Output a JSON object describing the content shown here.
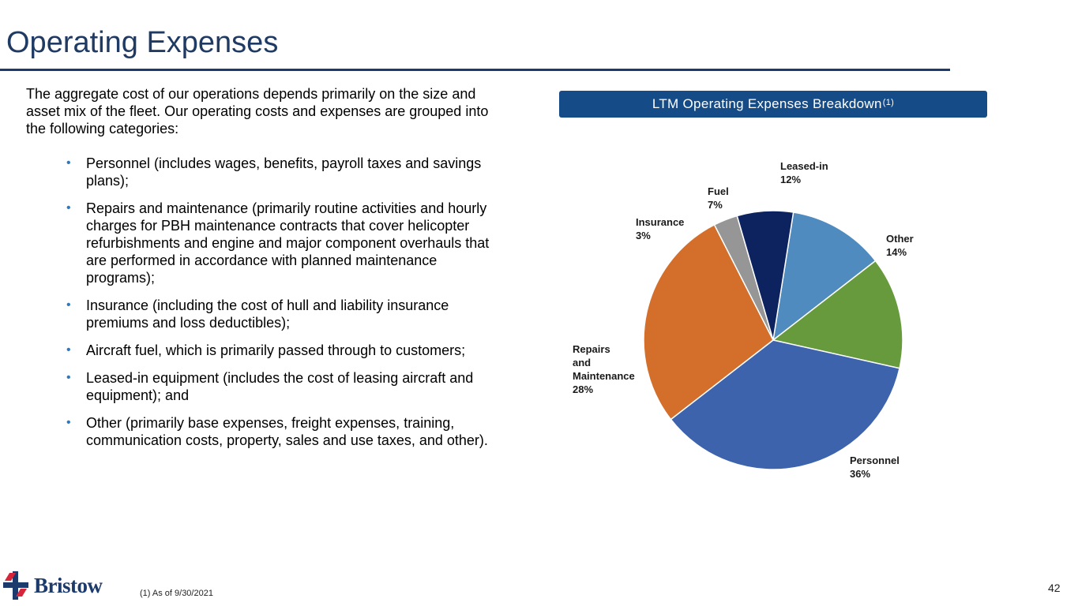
{
  "slide": {
    "title": "Operating Expenses",
    "page_number": "42"
  },
  "body": {
    "intro": "The aggregate cost of our operations depends primarily on the size and asset mix of the fleet. Our operating costs and expenses are grouped into the following categories:",
    "bullets": [
      "Personnel (includes wages, benefits, payroll taxes and savings plans);",
      "Repairs and maintenance (primarily routine activities and hourly charges for PBH maintenance contracts that cover helicopter refurbishments and engine and major component overhauls that are performed in accordance with planned maintenance programs);",
      "Insurance (including the cost of hull and liability insurance premiums and loss deductibles);",
      "Aircraft fuel, which is primarily passed through to customers;",
      "Leased-in equipment (includes the cost of leasing aircraft and equipment); and",
      "Other (primarily base expenses, freight expenses, training, communication costs, property, sales and use taxes, and other)."
    ],
    "bullet_symbol": "•"
  },
  "chart_header": {
    "text": "LTM Operating Expenses Breakdown",
    "superscript": "(1)"
  },
  "chart_data": {
    "type": "pie",
    "title": "LTM Operating Expenses Breakdown",
    "start": "Leased-in, clockwise from the top",
    "slices": [
      {
        "label": "Leased-in",
        "value": 12,
        "value_label": "12%",
        "color": "#4f8bbf"
      },
      {
        "label": "Other",
        "value": 14,
        "value_label": "14%",
        "color": "#669a3c"
      },
      {
        "label": "Personnel",
        "value": 36,
        "value_label": "36%",
        "color": "#3d63ad"
      },
      {
        "label": "Repairs and Maintenance",
        "value": 28,
        "value_label": "28%",
        "color": "#d36f2a"
      },
      {
        "label": "Insurance",
        "value": 3,
        "value_label": "3%",
        "color": "#969696"
      },
      {
        "label": "Fuel",
        "value": 7,
        "value_label": "7%",
        "color": "#0d2360"
      }
    ]
  },
  "footer": {
    "footnote": "(1)  As of 9/30/2021",
    "logo_text": "Bristow",
    "logo_colors": {
      "red": "#d6263a",
      "blue": "#1c3a6b"
    }
  }
}
